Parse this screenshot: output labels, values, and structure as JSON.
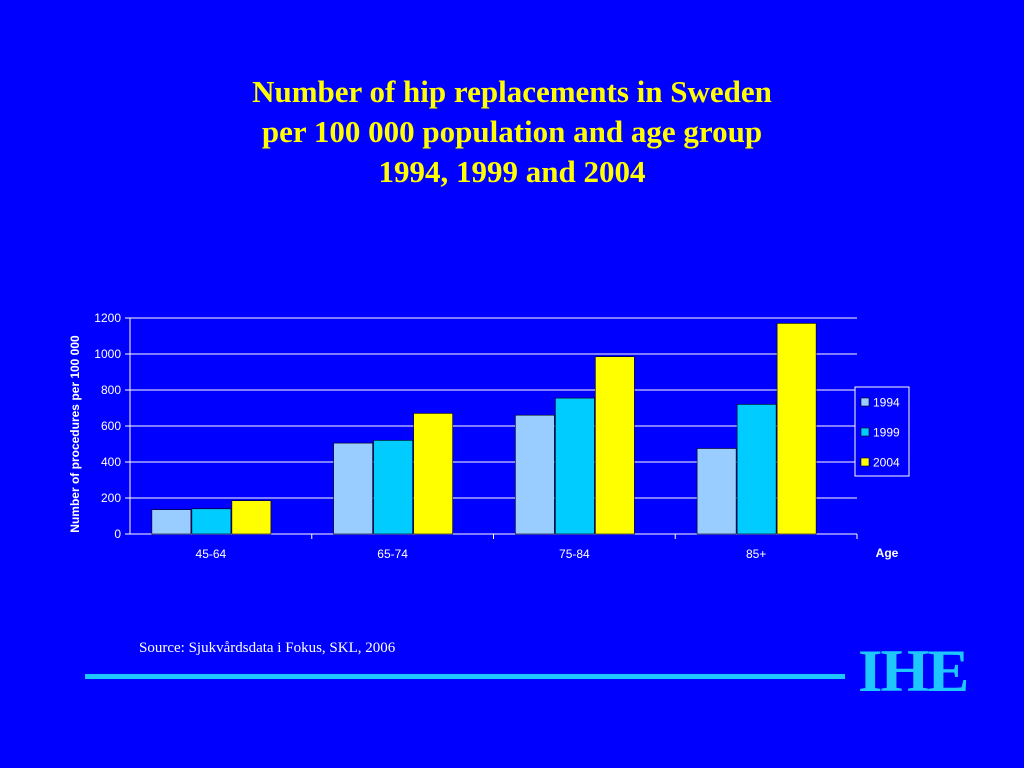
{
  "slide": {
    "title_lines": [
      "Number of hip replacements in Sweden",
      "per 100 000 population and age group",
      "1994, 1999 and 2004"
    ],
    "source": "Source: Sjukvårdsdata i Fokus, SKL, 2006",
    "logo_text": "IHE"
  },
  "colors": {
    "background": "#0000FF",
    "title": "#FFFF00",
    "accent": "#1EC8FF"
  },
  "chart_data": {
    "type": "bar",
    "categories": [
      "45-64",
      "65-74",
      "75-84",
      "85+"
    ],
    "series": [
      {
        "name": "1994",
        "values": [
          135,
          505,
          660,
          475
        ],
        "color": "#99CCFF"
      },
      {
        "name": "1999",
        "values": [
          140,
          520,
          755,
          720
        ],
        "color": "#00CCFF"
      },
      {
        "name": "2004",
        "values": [
          185,
          670,
          985,
          1170
        ],
        "color": "#FFFF00"
      }
    ],
    "xlabel": "Age",
    "ylabel": "Number of procedures per 100 000",
    "ylim": [
      0,
      1200
    ],
    "yticks": [
      0,
      200,
      400,
      600,
      800,
      1000,
      1200
    ],
    "grid": true,
    "legend": "right"
  }
}
